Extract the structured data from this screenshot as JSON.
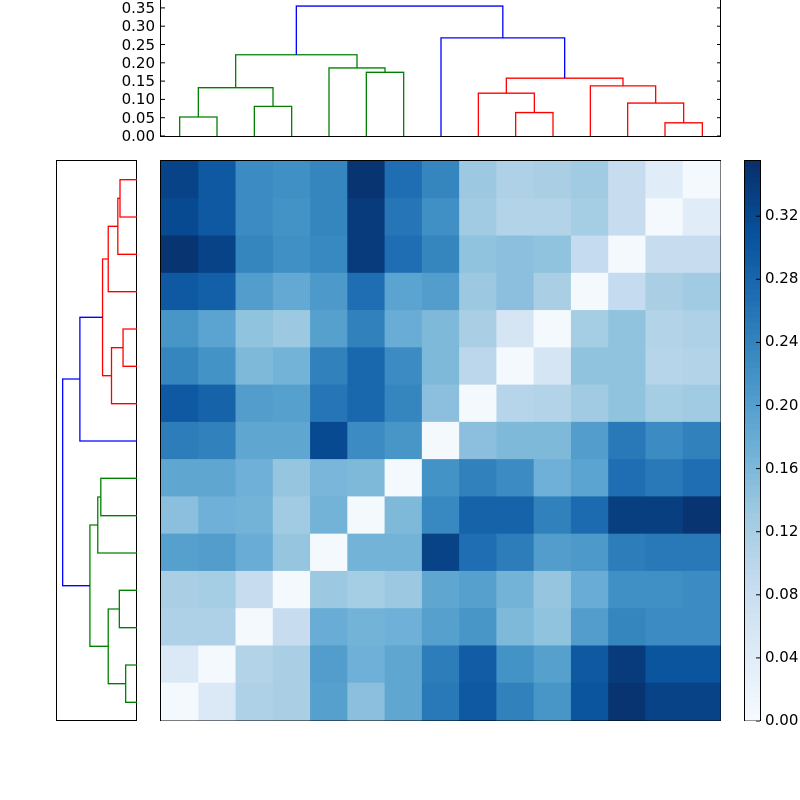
{
  "chart_data": {
    "type": "heatmap",
    "title": "",
    "description": "Clustered heatmap (distance matrix) with column dendrogram on top and row dendrogram on left, Blues colormap",
    "colormap": "Blues",
    "vmin": 0.0,
    "vmax": 0.355,
    "n_rows": 15,
    "n_cols": 15,
    "matrix": [
      [
        0.33,
        0.3,
        0.23,
        0.225,
        0.24,
        0.35,
        0.27,
        0.24,
        0.135,
        0.115,
        0.12,
        0.13,
        0.085,
        0.04,
        0.005
      ],
      [
        0.32,
        0.3,
        0.23,
        0.22,
        0.24,
        0.34,
        0.26,
        0.225,
        0.13,
        0.11,
        0.11,
        0.125,
        0.085,
        0.005,
        0.04
      ],
      [
        0.35,
        0.33,
        0.24,
        0.225,
        0.235,
        0.34,
        0.27,
        0.24,
        0.145,
        0.15,
        0.145,
        0.09,
        0.005,
        0.085,
        0.085
      ],
      [
        0.3,
        0.29,
        0.205,
        0.185,
        0.21,
        0.27,
        0.195,
        0.205,
        0.135,
        0.15,
        0.12,
        0.005,
        0.09,
        0.12,
        0.13
      ],
      [
        0.215,
        0.195,
        0.145,
        0.135,
        0.2,
        0.245,
        0.18,
        0.16,
        0.12,
        0.06,
        0.005,
        0.125,
        0.145,
        0.11,
        0.115
      ],
      [
        0.24,
        0.22,
        0.16,
        0.17,
        0.245,
        0.28,
        0.23,
        0.16,
        0.1,
        0.005,
        0.06,
        0.145,
        0.145,
        0.105,
        0.11
      ],
      [
        0.3,
        0.285,
        0.205,
        0.2,
        0.26,
        0.28,
        0.24,
        0.15,
        0.005,
        0.105,
        0.11,
        0.13,
        0.145,
        0.125,
        0.13
      ],
      [
        0.25,
        0.245,
        0.19,
        0.19,
        0.32,
        0.23,
        0.215,
        0.005,
        0.15,
        0.16,
        0.16,
        0.205,
        0.255,
        0.23,
        0.245
      ],
      [
        0.19,
        0.19,
        0.175,
        0.14,
        0.165,
        0.16,
        0.005,
        0.22,
        0.245,
        0.23,
        0.175,
        0.195,
        0.27,
        0.255,
        0.27
      ],
      [
        0.15,
        0.175,
        0.17,
        0.13,
        0.17,
        0.005,
        0.16,
        0.235,
        0.285,
        0.285,
        0.245,
        0.275,
        0.335,
        0.335,
        0.35
      ],
      [
        0.2,
        0.205,
        0.18,
        0.14,
        0.005,
        0.17,
        0.17,
        0.33,
        0.27,
        0.25,
        0.205,
        0.21,
        0.25,
        0.255,
        0.255
      ],
      [
        0.12,
        0.125,
        0.085,
        0.005,
        0.135,
        0.125,
        0.135,
        0.19,
        0.2,
        0.17,
        0.14,
        0.18,
        0.225,
        0.225,
        0.23
      ],
      [
        0.115,
        0.115,
        0.005,
        0.085,
        0.18,
        0.17,
        0.175,
        0.2,
        0.215,
        0.16,
        0.145,
        0.205,
        0.24,
        0.23,
        0.23
      ],
      [
        0.05,
        0.005,
        0.11,
        0.12,
        0.205,
        0.175,
        0.19,
        0.25,
        0.295,
        0.22,
        0.2,
        0.3,
        0.34,
        0.305,
        0.305
      ],
      [
        0.005,
        0.05,
        0.115,
        0.12,
        0.2,
        0.15,
        0.19,
        0.255,
        0.3,
        0.245,
        0.215,
        0.305,
        0.35,
        0.33,
        0.33
      ]
    ],
    "top_dendrogram": {
      "ylabel": "",
      "ylim": [
        0,
        0.355
      ],
      "ytick_labels": [
        "0.00",
        "0.05",
        "0.10",
        "0.15",
        "0.20",
        "0.25",
        "0.30",
        "0.35"
      ],
      "yticks": [
        0.0,
        0.05,
        0.1,
        0.15,
        0.2,
        0.25,
        0.3,
        0.35
      ],
      "links": [
        {
          "color": "green",
          "left_x": 0,
          "right_x": 1,
          "height": 0.052,
          "left_h": 0,
          "right_h": 0
        },
        {
          "color": "green",
          "left_x": 2,
          "right_x": 3,
          "height": 0.081,
          "left_h": 0,
          "right_h": 0
        },
        {
          "color": "green",
          "left_x": 0.5,
          "right_x": 2.5,
          "height": 0.132,
          "left_h": 0.052,
          "right_h": 0.081
        },
        {
          "color": "green",
          "left_x": 5,
          "right_x": 6,
          "height": 0.174,
          "left_h": 0,
          "right_h": 0
        },
        {
          "color": "green",
          "left_x": 4,
          "right_x": 5.5,
          "height": 0.186,
          "left_h": 0,
          "right_h": 0.174
        },
        {
          "color": "green",
          "left_x": 1.5,
          "right_x": 4.75,
          "height": 0.222,
          "left_h": 0.132,
          "right_h": 0.186
        },
        {
          "color": "red",
          "left_x": 9,
          "right_x": 10,
          "height": 0.064,
          "left_h": 0,
          "right_h": 0
        },
        {
          "color": "red",
          "left_x": 8,
          "right_x": 9.5,
          "height": 0.117,
          "left_h": 0,
          "right_h": 0.064
        },
        {
          "color": "red",
          "left_x": 13,
          "right_x": 14,
          "height": 0.036,
          "left_h": 0,
          "right_h": 0
        },
        {
          "color": "red",
          "left_x": 12,
          "right_x": 13.5,
          "height": 0.09,
          "left_h": 0,
          "right_h": 0.036
        },
        {
          "color": "red",
          "left_x": 11,
          "right_x": 12.75,
          "height": 0.137,
          "left_h": 0,
          "right_h": 0.09
        },
        {
          "color": "red",
          "left_x": 8.75,
          "right_x": 11.875,
          "height": 0.158,
          "left_h": 0.117,
          "right_h": 0.137
        },
        {
          "color": "blue",
          "left_x": 7,
          "right_x": 10.3125,
          "height": 0.268,
          "left_h": 0,
          "right_h": 0.158
        },
        {
          "color": "blue",
          "left_x": 3.125,
          "right_x": 8.656,
          "height": 0.355,
          "left_h": 0.222,
          "right_h": 0.268
        }
      ]
    },
    "left_dendrogram": {
      "orientation": "left",
      "xlim": [
        0.355,
        0
      ],
      "links": [
        {
          "color": "red",
          "top_y": 0,
          "bottom_y": 1,
          "height": 0.078,
          "top_h": 0,
          "bottom_h": 0
        },
        {
          "color": "red",
          "top_y": 0.5,
          "bottom_y": 2,
          "height": 0.088,
          "top_h": 0.078,
          "bottom_h": 0
        },
        {
          "color": "red",
          "top_y": 1.25,
          "bottom_y": 3,
          "height": 0.132,
          "top_h": 0.088,
          "bottom_h": 0
        },
        {
          "color": "red",
          "top_y": 4,
          "bottom_y": 5,
          "height": 0.064,
          "top_h": 0,
          "bottom_h": 0
        },
        {
          "color": "red",
          "top_y": 4.5,
          "bottom_y": 6,
          "height": 0.117,
          "top_h": 0.064,
          "bottom_h": 0
        },
        {
          "color": "red",
          "top_y": 2.125,
          "bottom_y": 5.25,
          "height": 0.158,
          "top_h": 0.132,
          "bottom_h": 0.117
        },
        {
          "color": "blue",
          "top_y": 3.6875,
          "bottom_y": 7,
          "height": 0.262,
          "top_h": 0.158,
          "bottom_h": 0
        },
        {
          "color": "green",
          "top_y": 8,
          "bottom_y": 9,
          "height": 0.166,
          "top_h": 0,
          "bottom_h": 0
        },
        {
          "color": "green",
          "top_y": 8.5,
          "bottom_y": 10,
          "height": 0.18,
          "top_h": 0.166,
          "bottom_h": 0
        },
        {
          "color": "green",
          "top_y": 11,
          "bottom_y": 12,
          "height": 0.081,
          "top_h": 0,
          "bottom_h": 0
        },
        {
          "color": "green",
          "top_y": 13,
          "bottom_y": 14,
          "height": 0.052,
          "top_h": 0,
          "bottom_h": 0
        },
        {
          "color": "green",
          "top_y": 11.5,
          "bottom_y": 13.5,
          "height": 0.132,
          "top_h": 0.081,
          "bottom_h": 0.052
        },
        {
          "color": "green",
          "top_y": 9.25,
          "bottom_y": 12.5,
          "height": 0.216,
          "top_h": 0.18,
          "bottom_h": 0.132
        },
        {
          "color": "blue",
          "top_y": 5.34,
          "bottom_y": 10.875,
          "height": 0.341,
          "top_h": 0.262,
          "bottom_h": 0.216
        }
      ]
    },
    "colorbar": {
      "tick_labels": [
        "0.00",
        "0.04",
        "0.08",
        "0.12",
        "0.16",
        "0.20",
        "0.24",
        "0.28",
        "0.32"
      ],
      "ticks": [
        0.0,
        0.04,
        0.08,
        0.12,
        0.16,
        0.2,
        0.24,
        0.28,
        0.32
      ],
      "range": [
        0.0,
        0.355
      ]
    },
    "cluster_colors": {
      "green": "#008000",
      "red": "#ff0000",
      "blue": "#0000ff"
    },
    "grid": false,
    "legend": null
  }
}
